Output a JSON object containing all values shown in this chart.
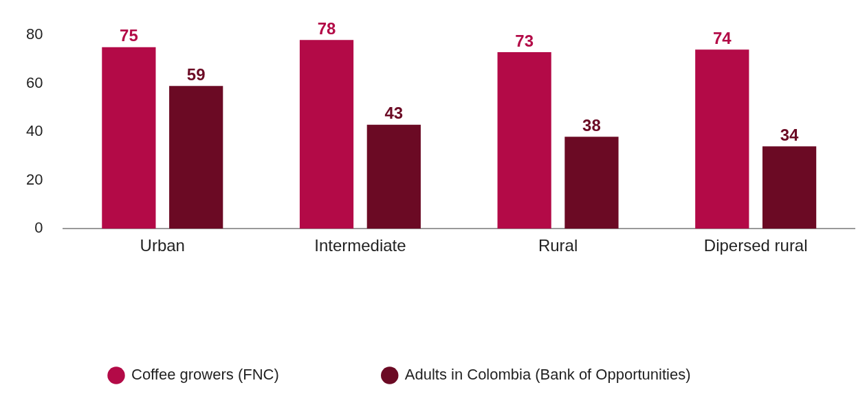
{
  "chart_data": {
    "type": "bar",
    "categories": [
      "Urban",
      "Intermediate",
      "Rural",
      "Dipersed rural"
    ],
    "series": [
      {
        "name": "Coffee growers (FNC)",
        "color": "#b30a47",
        "values": [
          75,
          78,
          73,
          74
        ]
      },
      {
        "name": "Adults in Colombia (Bank of Opportunities)",
        "color": "#6b0a24",
        "values": [
          59,
          43,
          38,
          34
        ]
      }
    ],
    "ylim": [
      0,
      80
    ],
    "yticks": [
      0,
      20,
      40,
      60,
      80
    ],
    "grid": false,
    "legend": "bottom",
    "data_labels": true
  }
}
